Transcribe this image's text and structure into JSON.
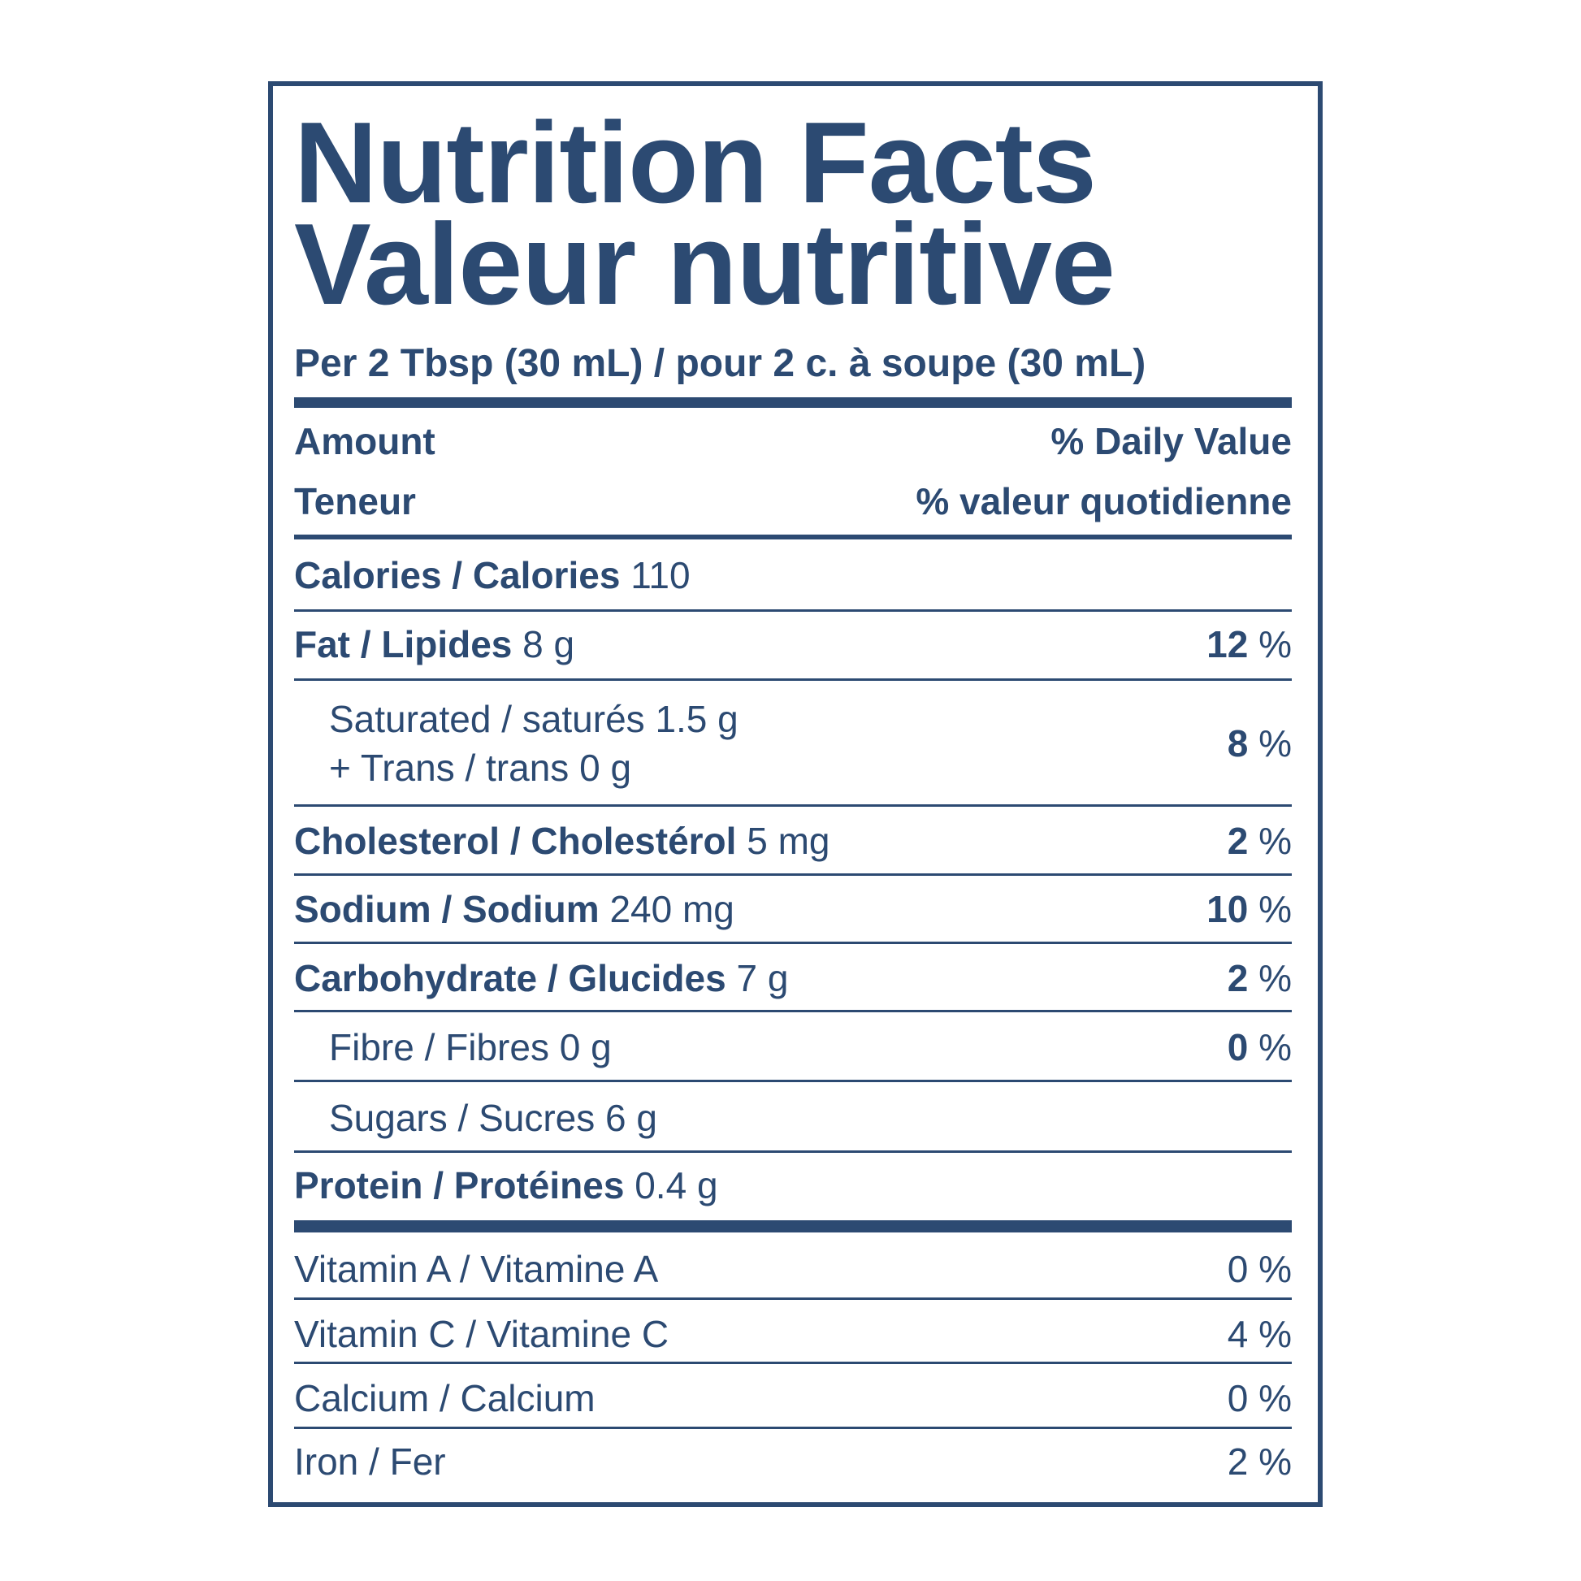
{
  "title": {
    "en": "Nutrition Facts",
    "fr": "Valeur nutritive"
  },
  "serving": "Per 2 Tbsp (30 mL) / pour 2 c. à soupe (30 mL)",
  "header": {
    "amount": "Amount",
    "amount_fr": "Teneur",
    "dv": "% Daily Value",
    "dv_fr": "% valeur quotidienne"
  },
  "rows": [
    {
      "label": "Calories / Calories",
      "amount": "110"
    },
    {
      "label": "Fat / Lipides",
      "amount": "8 g",
      "dv": 12,
      "unit": "%"
    },
    {
      "label": "Saturated / saturés 1.5 g",
      "label2": "+ Trans / trans 0 g",
      "dv": 8,
      "unit": "%"
    },
    {
      "label": "Cholesterol / Cholestérol",
      "amount": "5 mg",
      "dv": 2,
      "unit": "%"
    },
    {
      "label": "Sodium / Sodium",
      "amount": "240 mg",
      "dv": 10,
      "unit": "%"
    },
    {
      "label": "Carbohydrate / Glucides",
      "amount": "7 g",
      "dv": 2,
      "unit": "%"
    },
    {
      "label": "Fibre / Fibres 0 g",
      "dv": 0,
      "unit": "%"
    },
    {
      "label": "Sugars / Sucres 6 g"
    },
    {
      "label": "Protein / Protéines",
      "amount": "0.4 g"
    }
  ],
  "vitamins": [
    {
      "label": "Vitamin A / Vitamine A",
      "dv": 0,
      "unit": "%"
    },
    {
      "label": "Vitamin C / Vitamine C",
      "dv": 4,
      "unit": "%"
    },
    {
      "label": "Calcium / Calcium",
      "dv": 0,
      "unit": "%"
    },
    {
      "label": "Iron / Fer",
      "dv": 2,
      "unit": "%"
    }
  ]
}
